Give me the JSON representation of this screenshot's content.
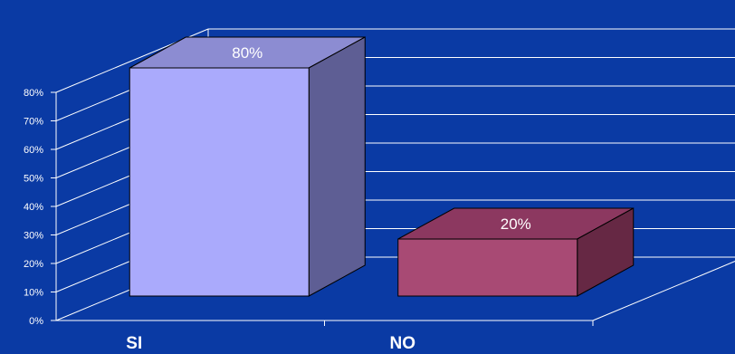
{
  "chart_data": {
    "type": "bar",
    "categories": [
      "SI",
      "NO"
    ],
    "values": [
      80,
      20
    ],
    "data_labels": [
      "80%",
      "20%"
    ],
    "ytick_labels": [
      "0%",
      "10%",
      "20%",
      "30%",
      "40%",
      "50%",
      "60%",
      "70%",
      "80%"
    ],
    "ylim": [
      0,
      80
    ],
    "grid": true,
    "three_d": true,
    "title": "",
    "xlabel": "",
    "ylabel": ""
  },
  "colors": {
    "background": "#0a3aa4",
    "bar_si_front": "#aaaafc",
    "bar_si_top": "#8c8cd2",
    "bar_si_side": "#5e5e94",
    "bar_no_front": "#a84a74",
    "bar_no_top": "#8c3860",
    "bar_no_side": "#662844",
    "lines": "#ffffff"
  }
}
